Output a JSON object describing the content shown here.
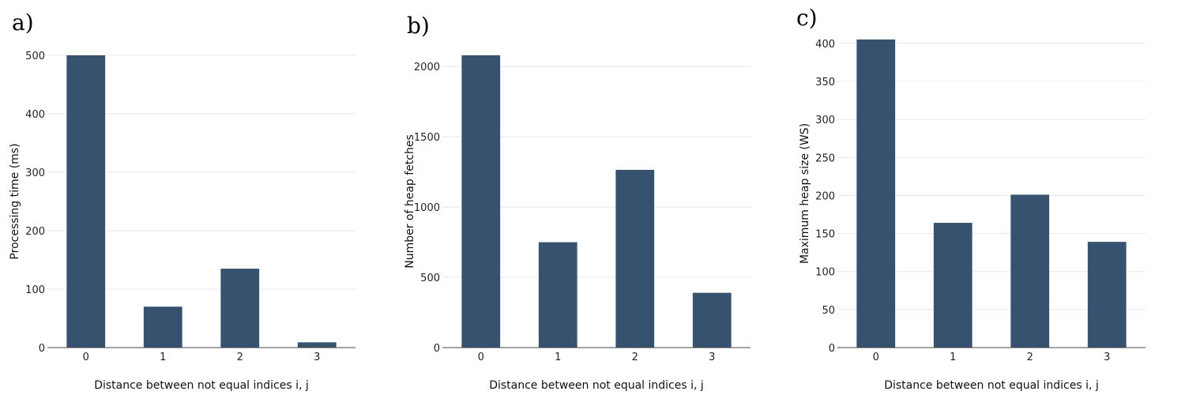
{
  "colors": {
    "bar": "#36526e",
    "grid": "#e8e8e8",
    "axis": "#444444"
  },
  "chart_data": [
    {
      "type": "bar",
      "panel_label": "a)",
      "categories": [
        "0",
        "1",
        "2",
        "3"
      ],
      "values": [
        500,
        70,
        135,
        9
      ],
      "xlabel": "Distance between not equal indices i, j",
      "ylabel": "Processing time (ms)",
      "ylim": [
        0,
        500
      ],
      "yticks": [
        0,
        100,
        200,
        300,
        400,
        500
      ],
      "grid": true
    },
    {
      "type": "bar",
      "panel_label": "b)",
      "categories": [
        "0",
        "1",
        "2",
        "3"
      ],
      "values": [
        2080,
        750,
        1265,
        390
      ],
      "xlabel": "Distance between not equal indices i, j",
      "ylabel": "Number of heap fetches",
      "ylim": [
        0,
        2080
      ],
      "yticks": [
        0,
        500,
        1000,
        1500,
        2000
      ],
      "grid": true
    },
    {
      "type": "bar",
      "panel_label": "c)",
      "categories": [
        "0",
        "1",
        "2",
        "3"
      ],
      "values": [
        405,
        164,
        201,
        139
      ],
      "xlabel": "Distance between not equal indices i, j",
      "ylabel": "Maximum heap size (WS)",
      "ylim": [
        0,
        405
      ],
      "yticks": [
        0,
        50,
        100,
        150,
        200,
        250,
        300,
        350,
        400
      ],
      "grid": true
    }
  ]
}
